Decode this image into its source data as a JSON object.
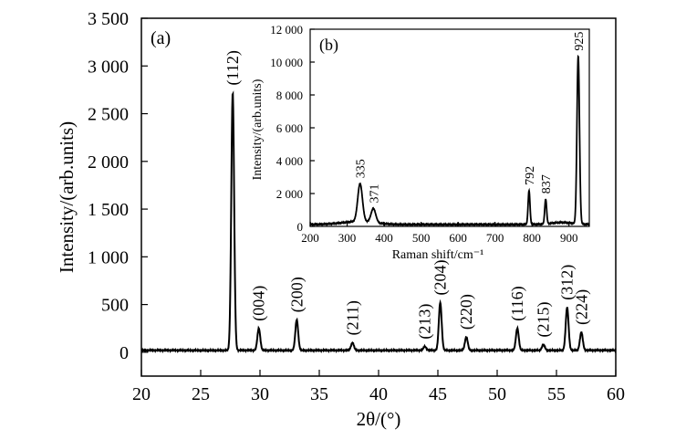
{
  "chart_data": [
    {
      "type": "line",
      "panel_label": "(a)",
      "xlabel": "2θ/(°)",
      "ylabel": "Intensity/(arb.units)",
      "xlim": [
        20,
        60
      ],
      "ylim": [
        -250,
        3500
      ],
      "xticks": [
        20,
        25,
        30,
        35,
        40,
        45,
        50,
        55,
        60
      ],
      "xtick_labels": [
        "20",
        "25",
        "30",
        "35",
        "40",
        "45",
        "50",
        "55",
        "60"
      ],
      "yticks": [
        0,
        500,
        1000,
        1500,
        2000,
        2500,
        3000,
        3500
      ],
      "ytick_labels": [
        "0",
        "500",
        "1 000",
        "1 500",
        "2 000",
        "2 500",
        "3 000",
        "3 500"
      ],
      "baseline": 20,
      "peaks": [
        {
          "x": 27.7,
          "y": 2700,
          "label": "(112)"
        },
        {
          "x": 29.9,
          "y": 230,
          "label": "(004)"
        },
        {
          "x": 33.1,
          "y": 320,
          "label": "(200)"
        },
        {
          "x": 37.8,
          "y": 80,
          "label": "(211)"
        },
        {
          "x": 43.9,
          "y": 40,
          "label": "(213)"
        },
        {
          "x": 45.2,
          "y": 500,
          "label": "(204)"
        },
        {
          "x": 47.4,
          "y": 140,
          "label": "(220)"
        },
        {
          "x": 51.7,
          "y": 230,
          "label": "(116)"
        },
        {
          "x": 53.9,
          "y": 60,
          "label": "(215)"
        },
        {
          "x": 55.9,
          "y": 450,
          "label": "(312)"
        },
        {
          "x": 57.1,
          "y": 190,
          "label": "(224)"
        }
      ]
    },
    {
      "type": "line",
      "panel_label": "(b)",
      "xlabel": "Raman shift/cm⁻¹",
      "ylabel": "Intensity/(arb.units)",
      "xlim": [
        200,
        955
      ],
      "ylim": [
        0,
        12000
      ],
      "xticks": [
        200,
        300,
        400,
        500,
        600,
        700,
        800,
        900
      ],
      "xtick_labels": [
        "200",
        "300",
        "400",
        "500",
        "600",
        "700",
        "800",
        "900"
      ],
      "yticks": [
        0,
        2000,
        4000,
        6000,
        8000,
        10000,
        12000
      ],
      "ytick_labels": [
        "0",
        "2 000",
        "4 000",
        "6 000",
        "8 000",
        "10 000",
        "12 000"
      ],
      "peaks": [
        {
          "x": 335,
          "y": 2300,
          "label": "335"
        },
        {
          "x": 371,
          "y": 850,
          "label": "371"
        },
        {
          "x": 792,
          "y": 2050,
          "label": "792"
        },
        {
          "x": 837,
          "y": 1500,
          "label": "837"
        },
        {
          "x": 925,
          "y": 10200,
          "label": "925"
        }
      ]
    }
  ]
}
